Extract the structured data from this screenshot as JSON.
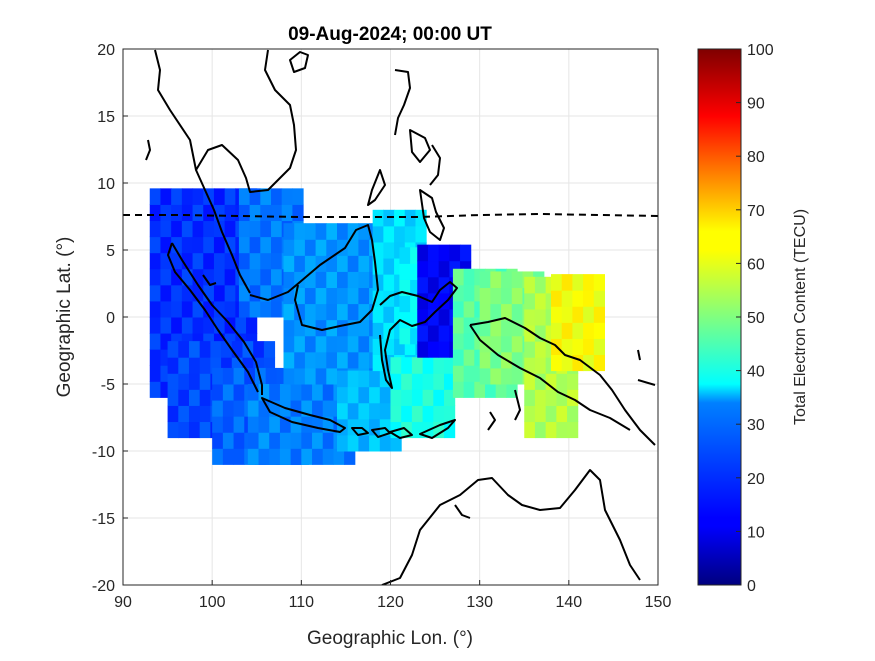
{
  "chart_data": {
    "type": "heatmap",
    "title": "09-Aug-2024; 00:00 UT",
    "xlabel": "Geographic Lon. (°)",
    "ylabel": "Geographic Lat. (°)",
    "xlim": [
      90,
      150
    ],
    "ylim": [
      -20,
      20
    ],
    "xticks": [
      "90",
      "100",
      "110",
      "120",
      "130",
      "140",
      "150"
    ],
    "yticks": [
      "20",
      "15",
      "10",
      "5",
      "0",
      "-5",
      "-10",
      "-15",
      "-20"
    ],
    "grid": true,
    "colorbar": {
      "label": "Total Electron Content (TECU)",
      "range": [
        0,
        100
      ],
      "ticks": [
        "100",
        "90",
        "80",
        "70",
        "60",
        "50",
        "40",
        "30",
        "20",
        "10",
        "0"
      ],
      "colormap": "jet"
    },
    "magnetic_equator_style": "dashed",
    "regions": [
      {
        "lon": [
          93,
          104
        ],
        "lat": [
          -6,
          9
        ],
        "tec": 17
      },
      {
        "lon": [
          95,
          106
        ],
        "lat": [
          -9,
          -2
        ],
        "tec": 19
      },
      {
        "lon": [
          100,
          110
        ],
        "lat": [
          -11,
          -4
        ],
        "tec": 22
      },
      {
        "lon": [
          104,
          116
        ],
        "lat": [
          -11,
          -6
        ],
        "tec": 25
      },
      {
        "lon": [
          103,
          110
        ],
        "lat": [
          0,
          9
        ],
        "tec": 24
      },
      {
        "lon": [
          108,
          118
        ],
        "lat": [
          -5,
          6
        ],
        "tec": 27
      },
      {
        "lon": [
          114,
          121
        ],
        "lat": [
          -10,
          -4
        ],
        "tec": 31
      },
      {
        "lon": [
          118,
          124
        ],
        "lat": [
          -4,
          7
        ],
        "tec": 34
      },
      {
        "lon": [
          120,
          127
        ],
        "lat": [
          -9,
          -4
        ],
        "tec": 40
      },
      {
        "lon": [
          121,
          128
        ],
        "lat": [
          -2,
          5
        ],
        "tec": 37
      },
      {
        "lon": [
          123,
          129
        ],
        "lat": [
          -3,
          5
        ],
        "tec": 12
      },
      {
        "lon": [
          127,
          133
        ],
        "lat": [
          -6,
          3
        ],
        "tec": 46
      },
      {
        "lon": [
          130,
          137
        ],
        "lat": [
          -5,
          3
        ],
        "tec": 50
      },
      {
        "lon": [
          135,
          140
        ],
        "lat": [
          -9,
          2
        ],
        "tec": 55
      },
      {
        "lon": [
          138,
          143
        ],
        "lat": [
          -4,
          3
        ],
        "tec": 62
      }
    ]
  }
}
